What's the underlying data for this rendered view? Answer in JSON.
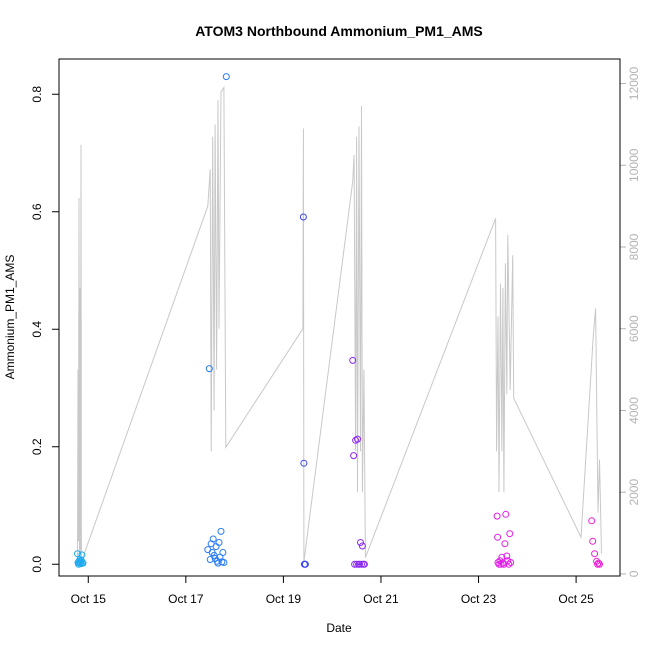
{
  "chart_data": {
    "type": "scatter",
    "title": "ATOM3 Northbound Ammonium_PM1_AMS",
    "xlabel": "Date",
    "ylabel": "Ammonium_PM1_AMS",
    "x_unit": "days since Oct 14 00:00 (dates on axis)",
    "xlim": [
      0.4,
      11.9
    ],
    "ylim": [
      -0.02,
      0.86
    ],
    "y2lim": [
      -50,
      12600
    ],
    "x_ticks": [
      {
        "value": 1,
        "label": "Oct 15"
      },
      {
        "value": 3,
        "label": "Oct 17"
      },
      {
        "value": 5,
        "label": "Oct 19"
      },
      {
        "value": 7,
        "label": "Oct 21"
      },
      {
        "value": 9,
        "label": "Oct 23"
      },
      {
        "value": 11,
        "label": "Oct 25"
      }
    ],
    "y_ticks": [
      "0.0",
      "0.2",
      "0.4",
      "0.6",
      "0.8"
    ],
    "y2_ticks": [
      "0",
      "2000",
      "4000",
      "6000",
      "8000",
      "10000",
      "12000"
    ],
    "grid": false,
    "legend": "none",
    "altitude_color": "#c8c8c8",
    "altitude_series": [
      [
        0.78,
        200
      ],
      [
        0.79,
        5000
      ],
      [
        0.8,
        800
      ],
      [
        0.81,
        9200
      ],
      [
        0.82,
        300
      ],
      [
        0.83,
        7000
      ],
      [
        0.84,
        500
      ],
      [
        0.85,
        10500
      ],
      [
        0.86,
        300
      ],
      [
        3.45,
        9000
      ],
      [
        3.5,
        9900
      ],
      [
        3.52,
        3000
      ],
      [
        3.55,
        10700
      ],
      [
        3.58,
        4000
      ],
      [
        3.6,
        11000
      ],
      [
        3.63,
        5000
      ],
      [
        3.66,
        11600
      ],
      [
        3.68,
        6000
      ],
      [
        3.72,
        11800
      ],
      [
        3.78,
        11900
      ],
      [
        3.82,
        3100
      ],
      [
        5.4,
        6000
      ],
      [
        5.41,
        10900
      ],
      [
        5.42,
        300
      ],
      [
        6.42,
        9600
      ],
      [
        6.45,
        10250
      ],
      [
        6.48,
        3000
      ],
      [
        6.5,
        10700
      ],
      [
        6.52,
        2000
      ],
      [
        6.55,
        10950
      ],
      [
        6.58,
        3000
      ],
      [
        6.6,
        11450
      ],
      [
        6.62,
        2000
      ],
      [
        6.65,
        5000
      ],
      [
        6.68,
        400
      ],
      [
        9.35,
        8700
      ],
      [
        9.37,
        3000
      ],
      [
        9.4,
        6300
      ],
      [
        9.42,
        2000
      ],
      [
        9.45,
        7100
      ],
      [
        9.48,
        3000
      ],
      [
        9.5,
        7000
      ],
      [
        9.52,
        2000
      ],
      [
        9.55,
        7600
      ],
      [
        9.58,
        4400
      ],
      [
        9.6,
        8300
      ],
      [
        9.65,
        4500
      ],
      [
        9.7,
        7800
      ],
      [
        9.72,
        4300
      ],
      [
        11.1,
        900
      ],
      [
        11.35,
        5800
      ],
      [
        11.4,
        6500
      ],
      [
        11.45,
        1500
      ],
      [
        11.48,
        2800
      ],
      [
        11.52,
        500
      ]
    ],
    "series": [
      {
        "name": "",
        "points": [
          [
            0.78,
            0.018
          ],
          [
            0.79,
            0.003
          ],
          [
            0.8,
            0.0
          ],
          [
            0.81,
            0.005
          ],
          [
            0.82,
            0.002
          ],
          [
            0.83,
            0.008
          ],
          [
            0.84,
            0.004
          ],
          [
            0.85,
            0.001
          ],
          [
            0.86,
            0.006
          ],
          [
            0.87,
            0.016
          ],
          [
            0.88,
            0.003
          ],
          [
            0.89,
            0.002
          ]
        ]
      },
      {
        "name": "",
        "points": [
          [
            3.45,
            0.025
          ],
          [
            3.48,
            0.333
          ],
          [
            3.5,
            0.008
          ],
          [
            3.52,
            0.035
          ],
          [
            3.54,
            0.02
          ],
          [
            3.56,
            0.043
          ],
          [
            3.58,
            0.015
          ],
          [
            3.6,
            0.01
          ],
          [
            3.62,
            0.03
          ],
          [
            3.64,
            0.005
          ],
          [
            3.66,
            0.002
          ],
          [
            3.68,
            0.037
          ],
          [
            3.7,
            0.012
          ],
          [
            3.72,
            0.056
          ],
          [
            3.74,
            0.004
          ],
          [
            3.76,
            0.02
          ],
          [
            3.78,
            0.003
          ],
          [
            3.83,
            0.83
          ]
        ]
      },
      {
        "name": "",
        "points": [
          [
            5.41,
            0.591
          ],
          [
            5.42,
            0.172
          ],
          [
            5.43,
            0.0
          ],
          [
            5.44,
            0.0
          ],
          [
            5.45,
            0.0
          ]
        ]
      },
      {
        "name": "",
        "points": [
          [
            6.42,
            0.347
          ],
          [
            6.44,
            0.185
          ],
          [
            6.46,
            0.0
          ],
          [
            6.48,
            0.211
          ],
          [
            6.5,
            0.0
          ],
          [
            6.52,
            0.213
          ],
          [
            6.54,
            0.0
          ],
          [
            6.56,
            0.0
          ],
          [
            6.58,
            0.037
          ],
          [
            6.6,
            0.0
          ],
          [
            6.62,
            0.031
          ],
          [
            6.64,
            0.0
          ],
          [
            6.66,
            0.0
          ]
        ]
      },
      {
        "name": "",
        "points": [
          [
            9.38,
            0.082
          ],
          [
            9.39,
            0.046
          ],
          [
            9.4,
            0.003
          ],
          [
            9.42,
            0.0
          ],
          [
            9.44,
            0.006
          ],
          [
            9.46,
            0.0
          ],
          [
            9.48,
            0.012
          ],
          [
            9.5,
            0.002
          ],
          [
            9.52,
            0.0
          ],
          [
            9.54,
            0.035
          ],
          [
            9.56,
            0.085
          ],
          [
            9.58,
            0.014
          ],
          [
            9.6,
            0.006
          ],
          [
            9.62,
            0.0
          ],
          [
            9.64,
            0.052
          ],
          [
            9.66,
            0.003
          ]
        ]
      },
      {
        "name": "",
        "points": [
          [
            11.32,
            0.074
          ],
          [
            11.34,
            0.039
          ],
          [
            11.38,
            0.018
          ],
          [
            11.42,
            0.005
          ],
          [
            11.44,
            0.0
          ],
          [
            11.46,
            0.002
          ],
          [
            11.48,
            0.0
          ]
        ]
      }
    ],
    "series_colors": [
      "#1eaaf0",
      "#2a7cf5",
      "#3c46f0",
      "#8a28f2",
      "#e01ee8",
      "#ee1ed6"
    ]
  }
}
